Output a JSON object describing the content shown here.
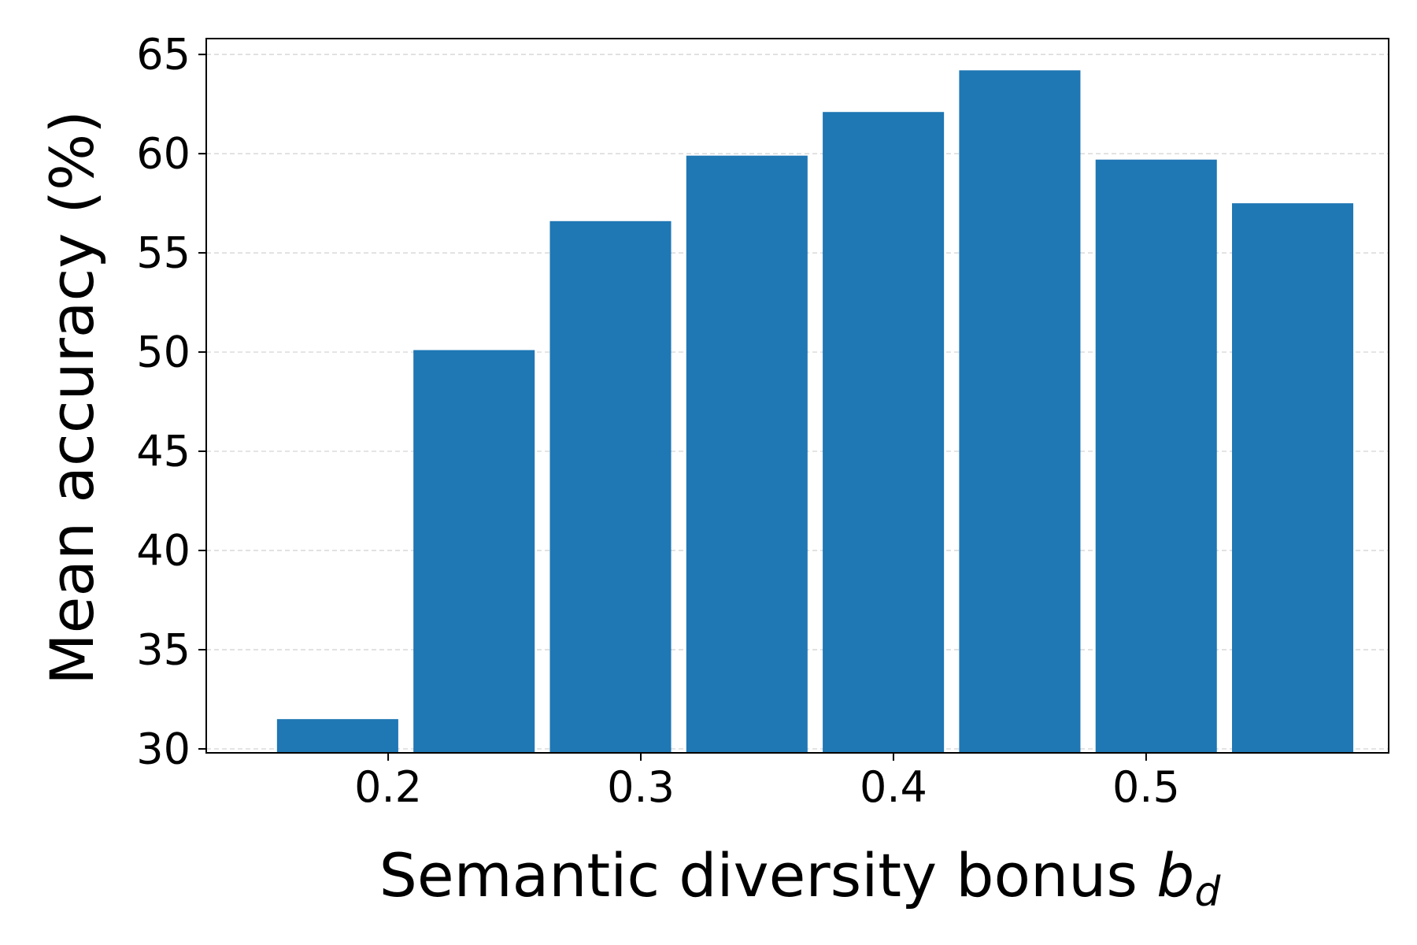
{
  "chart_data": {
    "type": "bar",
    "x": [
      0.18,
      0.234,
      0.288,
      0.342,
      0.396,
      0.45,
      0.504,
      0.558
    ],
    "values": [
      31.5,
      50.1,
      56.6,
      59.9,
      62.1,
      64.2,
      59.7,
      57.5
    ],
    "bar_width": 0.048,
    "xlabel": "Semantic diversity bonus",
    "xlabel_symbol": "b",
    "xlabel_subscript": "d",
    "ylabel": "Mean accuracy (%)",
    "xlim": [
      0.128,
      0.596
    ],
    "ylim": [
      29.8,
      65.8
    ],
    "xticks": [
      0.2,
      0.3,
      0.4,
      0.5
    ],
    "xtick_labels": [
      "0.2",
      "0.3",
      "0.4",
      "0.5"
    ],
    "yticks": [
      30,
      35,
      40,
      45,
      50,
      55,
      60,
      65
    ],
    "ytick_labels": [
      "30",
      "35",
      "40",
      "45",
      "50",
      "55",
      "60",
      "65"
    ],
    "grid": "horizontal dashed",
    "colors": {
      "bar": "#1f77b4",
      "grid": "#d0d0d0",
      "axis": "#000000"
    }
  }
}
